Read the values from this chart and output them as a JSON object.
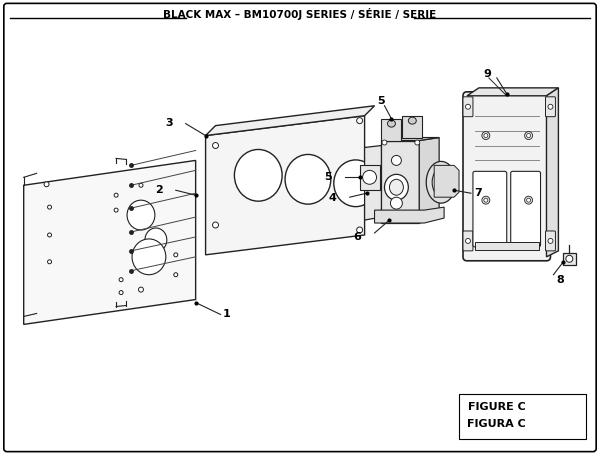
{
  "title": "BLACK MAX – BM10700J SERIES / SÉRIE / SERIE",
  "figure_label": "FIGURE C",
  "figura_label": "FIGURA C",
  "bg_color": "#ffffff",
  "line_color": "#222222",
  "title_fontsize": 7.5,
  "label_fontsize": 8
}
